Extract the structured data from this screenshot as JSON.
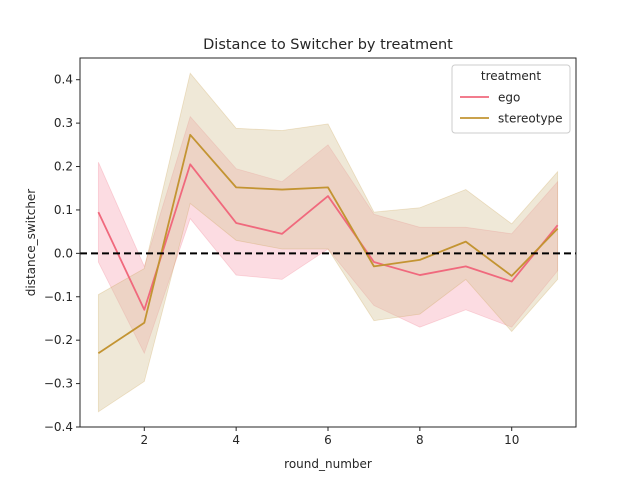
{
  "chart_data": {
    "type": "line",
    "title": "Distance to Switcher by treatment",
    "xlabel": "round_number",
    "ylabel": "distance_switcher",
    "xlim": [
      0.6,
      11.4
    ],
    "ylim": [
      -0.4,
      0.45
    ],
    "xticks": [
      2,
      4,
      6,
      8,
      10
    ],
    "yticks": [
      -0.4,
      -0.3,
      -0.2,
      -0.1,
      0.0,
      0.1,
      0.2,
      0.3,
      0.4
    ],
    "ytick_labels": [
      "−0.4",
      "−0.3",
      "−0.2",
      "−0.1",
      "0.0",
      "0.1",
      "0.2",
      "0.3",
      "0.4"
    ],
    "reference_line": {
      "y": 0.0,
      "style": "dashed",
      "color": "#000000"
    },
    "legend": {
      "title": "treatment",
      "placement": "upper right"
    },
    "x": [
      1,
      2,
      3,
      4,
      5,
      6,
      7,
      8,
      9,
      10,
      11
    ],
    "series": [
      {
        "name": "ego",
        "color": "#f0697d",
        "band_color": "#f7a8b7",
        "values": [
          0.095,
          -0.13,
          0.205,
          0.07,
          0.045,
          0.132,
          -0.02,
          -0.05,
          -0.03,
          -0.065,
          0.065
        ],
        "ci_low": [
          -0.02,
          -0.23,
          0.08,
          -0.05,
          -0.06,
          0.01,
          -0.12,
          -0.17,
          -0.13,
          -0.17,
          -0.04
        ],
        "ci_high": [
          0.21,
          -0.03,
          0.315,
          0.195,
          0.165,
          0.25,
          0.09,
          0.06,
          0.06,
          0.045,
          0.165
        ]
      },
      {
        "name": "stereotype",
        "color": "#c39432",
        "band_color": "#d8c69b",
        "values": [
          -0.23,
          -0.16,
          0.273,
          0.152,
          0.147,
          0.152,
          -0.03,
          -0.015,
          0.027,
          -0.052,
          0.057
        ],
        "ci_low": [
          -0.365,
          -0.295,
          0.115,
          0.03,
          0.01,
          0.01,
          -0.155,
          -0.14,
          -0.06,
          -0.18,
          -0.06
        ],
        "ci_high": [
          -0.095,
          -0.035,
          0.415,
          0.288,
          0.283,
          0.298,
          0.095,
          0.105,
          0.147,
          0.068,
          0.188
        ]
      }
    ]
  }
}
